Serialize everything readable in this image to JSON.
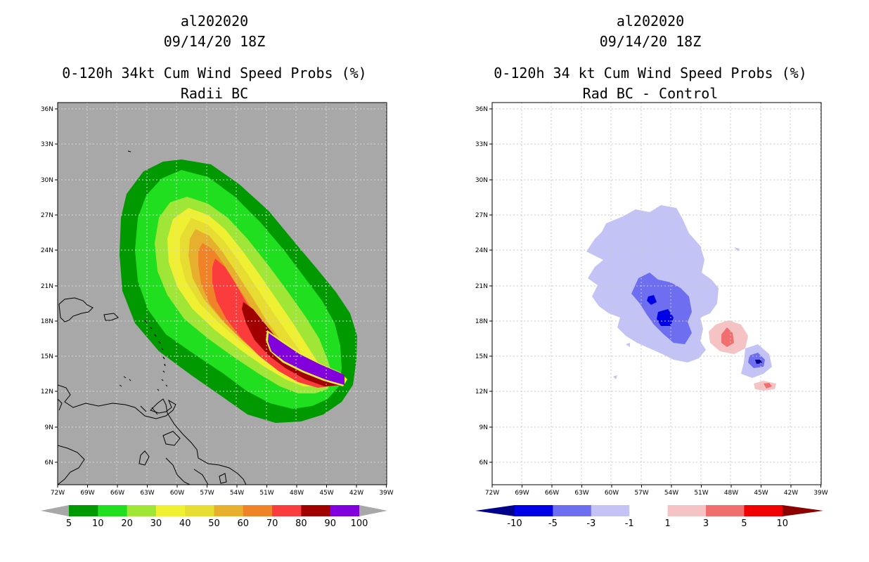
{
  "left_panel": {
    "storm_id": "al202020",
    "datetime": "09/14/20 18Z",
    "title": "0-120h 34kt Cum Wind Speed Probs (%)",
    "subtitle": "Radii BC",
    "background_color": "#a8a8a8",
    "colorbar": {
      "labels": [
        "5",
        "10",
        "20",
        "30",
        "40",
        "50",
        "60",
        "70",
        "80",
        "90",
        "100"
      ],
      "colors": [
        "#009900",
        "#1fdf1f",
        "#a0e636",
        "#f0f032",
        "#e6dc32",
        "#e6af2d",
        "#f08228",
        "#fa3c3c",
        "#a00000",
        "#8200dc"
      ]
    }
  },
  "right_panel": {
    "storm_id": "al202020",
    "datetime": "09/14/20 18Z",
    "title": "0-120h 34 kt Cum Wind Speed Probs (%)",
    "subtitle": "Rad BC - Control",
    "background_color": "#ffffff",
    "colorbar": {
      "labels": [
        "-10",
        "-5",
        "-3",
        "-1",
        "1",
        "3",
        "5",
        "10"
      ],
      "colors": [
        "#00008c",
        "#0000e6",
        "#6e6ef0",
        "#c3c3f5",
        "#ffffff",
        "#f5c3c3",
        "#f06e6e",
        "#f00000",
        "#8c0000"
      ]
    }
  },
  "axes": {
    "lat_labels": [
      "36N",
      "33N",
      "30N",
      "27N",
      "24N",
      "21N",
      "18N",
      "15N",
      "12N",
      "9N",
      "6N"
    ],
    "lon_labels": [
      "72W",
      "69W",
      "66W",
      "63W",
      "60W",
      "57W",
      "54W",
      "51W",
      "48W",
      "45W",
      "42W",
      "39W"
    ]
  }
}
